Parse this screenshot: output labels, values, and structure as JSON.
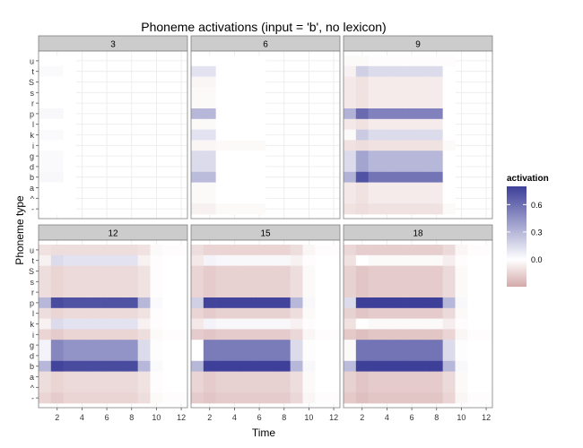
{
  "chart_data": {
    "type": "heatmap",
    "title": "Phoneme activations (input = 'b', no lexicon)",
    "xlabel": "Time",
    "ylabel": "Phoneme type",
    "x_ticks": [
      2,
      4,
      6,
      8,
      10,
      12
    ],
    "xlim": [
      1,
      12
    ],
    "phonemes": [
      "u",
      "t",
      "S",
      "s",
      "r",
      "p",
      "l",
      "k",
      "i",
      "g",
      "d",
      "b",
      "a",
      "^",
      "-"
    ],
    "legend": {
      "title": "activation",
      "ticks": [
        0.0,
        0.3,
        0.6
      ],
      "range": [
        -0.3,
        0.8
      ],
      "low_color": "#d4a9a9",
      "mid_color": "#ffffff",
      "high_color": "#3d3f99",
      "placement": "right"
    },
    "grid": true,
    "panels": [
      {
        "label": "3",
        "time_steps": 3,
        "values": {
          "u": [
            0.0,
            0.0,
            0.0
          ],
          "t": [
            0.02,
            0.02,
            0.0
          ],
          "S": [
            0.0,
            0.0,
            0.0
          ],
          "s": [
            0.0,
            0.0,
            0.0
          ],
          "r": [
            0.0,
            0.0,
            0.0
          ],
          "p": [
            0.03,
            0.03,
            0.0
          ],
          "l": [
            0.0,
            0.0,
            0.0
          ],
          "k": [
            0.02,
            0.02,
            0.0
          ],
          "i": [
            0.0,
            0.0,
            0.0
          ],
          "g": [
            0.02,
            0.02,
            0.0
          ],
          "d": [
            0.02,
            0.02,
            0.0
          ],
          "b": [
            0.03,
            0.03,
            0.0
          ],
          "a": [
            0.0,
            0.0,
            0.0
          ],
          "^": [
            0.0,
            0.0,
            0.0
          ],
          "-": [
            0.0,
            0.0,
            0.0
          ]
        }
      },
      {
        "label": "6",
        "time_steps": 6,
        "values": {
          "u": [
            0.0,
            0.0,
            0.0,
            0.0,
            0.0,
            0.0
          ],
          "t": [
            0.12,
            0.12,
            0.0,
            0.0,
            0.0,
            0.0
          ],
          "S": [
            -0.03,
            -0.03,
            0.0,
            0.0,
            0.0,
            0.0
          ],
          "s": [
            -0.02,
            -0.02,
            0.0,
            0.0,
            0.0,
            0.0
          ],
          "r": [
            -0.02,
            -0.02,
            0.0,
            0.0,
            0.0,
            0.0
          ],
          "p": [
            0.3,
            0.3,
            0.0,
            0.0,
            0.0,
            0.0
          ],
          "l": [
            -0.02,
            -0.02,
            0.0,
            0.0,
            0.0,
            0.0
          ],
          "k": [
            0.12,
            0.12,
            0.0,
            0.0,
            0.0,
            0.0
          ],
          "i": [
            -0.03,
            -0.03,
            -0.02,
            -0.02,
            -0.02,
            -0.02
          ],
          "g": [
            0.15,
            0.15,
            0.0,
            0.0,
            0.0,
            0.0
          ],
          "d": [
            0.15,
            0.15,
            0.0,
            0.0,
            0.0,
            0.0
          ],
          "b": [
            0.28,
            0.28,
            0.0,
            0.0,
            0.0,
            0.0
          ],
          "a": [
            -0.02,
            -0.02,
            0.0,
            0.0,
            0.0,
            0.0
          ],
          "^": [
            -0.02,
            -0.02,
            0.0,
            0.0,
            0.0,
            0.0
          ],
          "-": [
            -0.05,
            -0.05,
            -0.02,
            -0.02,
            -0.02,
            -0.02
          ]
        }
      },
      {
        "label": "9",
        "time_steps": 9,
        "values": {
          "u": [
            -0.02,
            -0.02,
            -0.01,
            -0.01,
            -0.01,
            -0.01,
            -0.01,
            -0.01,
            -0.01
          ],
          "t": [
            -0.05,
            0.2,
            0.15,
            0.15,
            0.15,
            0.15,
            0.15,
            0.15,
            0.0
          ],
          "S": [
            -0.08,
            -0.1,
            -0.07,
            -0.07,
            -0.07,
            -0.07,
            -0.07,
            -0.07,
            0.0
          ],
          "s": [
            -0.08,
            -0.1,
            -0.07,
            -0.07,
            -0.07,
            -0.07,
            -0.07,
            -0.07,
            0.0
          ],
          "r": [
            -0.08,
            -0.1,
            -0.07,
            -0.07,
            -0.07,
            -0.07,
            -0.07,
            -0.07,
            0.0
          ],
          "p": [
            0.32,
            0.62,
            0.52,
            0.52,
            0.52,
            0.52,
            0.52,
            0.52,
            0.0
          ],
          "l": [
            -0.08,
            -0.1,
            -0.07,
            -0.07,
            -0.07,
            -0.07,
            -0.07,
            -0.07,
            0.0
          ],
          "k": [
            -0.02,
            0.22,
            0.15,
            0.15,
            0.15,
            0.15,
            0.15,
            0.15,
            0.0
          ],
          "i": [
            -0.1,
            -0.12,
            -0.1,
            -0.1,
            -0.1,
            -0.1,
            -0.1,
            -0.1,
            -0.02
          ],
          "g": [
            0.15,
            0.38,
            0.3,
            0.3,
            0.3,
            0.3,
            0.3,
            0.3,
            0.0
          ],
          "d": [
            0.15,
            0.38,
            0.3,
            0.3,
            0.3,
            0.3,
            0.3,
            0.3,
            0.0
          ],
          "b": [
            0.32,
            0.72,
            0.58,
            0.58,
            0.58,
            0.58,
            0.58,
            0.58,
            0.0
          ],
          "a": [
            -0.08,
            -0.1,
            -0.07,
            -0.07,
            -0.07,
            -0.07,
            -0.07,
            -0.07,
            0.0
          ],
          "^": [
            -0.08,
            -0.1,
            -0.07,
            -0.07,
            -0.07,
            -0.07,
            -0.07,
            -0.07,
            0.0
          ],
          "-": [
            -0.1,
            -0.12,
            -0.1,
            -0.1,
            -0.1,
            -0.1,
            -0.1,
            -0.1,
            -0.02
          ]
        }
      },
      {
        "label": "12",
        "time_steps": 12,
        "values": {
          "u": [
            -0.1,
            -0.12,
            -0.12,
            -0.12,
            -0.12,
            -0.12,
            -0.12,
            -0.12,
            -0.1,
            -0.02,
            -0.01,
            -0.01
          ],
          "t": [
            -0.05,
            0.15,
            0.12,
            0.12,
            0.12,
            0.12,
            0.12,
            0.12,
            -0.05,
            -0.01,
            0.0,
            0.0
          ],
          "S": [
            -0.12,
            -0.15,
            -0.13,
            -0.13,
            -0.13,
            -0.13,
            -0.13,
            -0.13,
            -0.1,
            -0.01,
            0.0,
            0.0
          ],
          "s": [
            -0.12,
            -0.15,
            -0.13,
            -0.13,
            -0.13,
            -0.13,
            -0.13,
            -0.13,
            -0.1,
            -0.01,
            0.0,
            0.0
          ],
          "r": [
            -0.12,
            -0.15,
            -0.13,
            -0.13,
            -0.13,
            -0.13,
            -0.13,
            -0.13,
            -0.1,
            -0.01,
            0.0,
            0.0
          ],
          "p": [
            0.3,
            0.75,
            0.72,
            0.72,
            0.72,
            0.72,
            0.72,
            0.72,
            0.3,
            0.02,
            0.0,
            0.0
          ],
          "l": [
            -0.12,
            -0.15,
            -0.13,
            -0.13,
            -0.13,
            -0.13,
            -0.13,
            -0.13,
            -0.1,
            -0.01,
            0.0,
            0.0
          ],
          "k": [
            -0.05,
            0.15,
            0.12,
            0.12,
            0.12,
            0.12,
            0.12,
            0.12,
            -0.05,
            -0.01,
            0.0,
            0.0
          ],
          "i": [
            -0.15,
            -0.18,
            -0.15,
            -0.15,
            -0.15,
            -0.15,
            -0.15,
            -0.15,
            -0.12,
            -0.02,
            -0.01,
            -0.01
          ],
          "g": [
            0.05,
            0.5,
            0.45,
            0.45,
            0.45,
            0.45,
            0.45,
            0.45,
            0.15,
            0.01,
            0.0,
            0.0
          ],
          "d": [
            0.05,
            0.5,
            0.45,
            0.45,
            0.45,
            0.45,
            0.45,
            0.45,
            0.15,
            0.01,
            0.0,
            0.0
          ],
          "b": [
            0.3,
            0.78,
            0.75,
            0.75,
            0.75,
            0.75,
            0.75,
            0.75,
            0.3,
            0.02,
            0.0,
            0.0
          ],
          "a": [
            -0.12,
            -0.15,
            -0.13,
            -0.13,
            -0.13,
            -0.13,
            -0.13,
            -0.13,
            -0.1,
            -0.01,
            0.0,
            0.0
          ],
          "^": [
            -0.12,
            -0.15,
            -0.13,
            -0.13,
            -0.13,
            -0.13,
            -0.13,
            -0.13,
            -0.1,
            -0.01,
            0.0,
            0.0
          ],
          "-": [
            -0.15,
            -0.18,
            -0.15,
            -0.15,
            -0.15,
            -0.15,
            -0.15,
            -0.15,
            -0.12,
            -0.02,
            -0.01,
            -0.01
          ]
        }
      },
      {
        "label": "15",
        "time_steps": 12,
        "values": {
          "u": [
            -0.12,
            -0.15,
            -0.15,
            -0.15,
            -0.15,
            -0.15,
            -0.15,
            -0.15,
            -0.12,
            -0.03,
            -0.01,
            -0.01
          ],
          "t": [
            -0.08,
            0.05,
            0.03,
            0.03,
            0.03,
            0.03,
            0.03,
            0.03,
            -0.05,
            -0.01,
            0.0,
            0.0
          ],
          "S": [
            -0.15,
            -0.18,
            -0.16,
            -0.16,
            -0.16,
            -0.16,
            -0.16,
            -0.16,
            -0.12,
            -0.02,
            0.0,
            0.0
          ],
          "s": [
            -0.15,
            -0.18,
            -0.16,
            -0.16,
            -0.16,
            -0.16,
            -0.16,
            -0.16,
            -0.12,
            -0.02,
            0.0,
            0.0
          ],
          "r": [
            -0.15,
            -0.18,
            -0.16,
            -0.16,
            -0.16,
            -0.16,
            -0.16,
            -0.16,
            -0.12,
            -0.02,
            0.0,
            0.0
          ],
          "p": [
            0.2,
            0.78,
            0.78,
            0.78,
            0.78,
            0.78,
            0.78,
            0.78,
            0.3,
            0.03,
            0.0,
            0.0
          ],
          "l": [
            -0.15,
            -0.18,
            -0.16,
            -0.16,
            -0.16,
            -0.16,
            -0.16,
            -0.16,
            -0.12,
            -0.02,
            0.0,
            0.0
          ],
          "k": [
            -0.08,
            0.05,
            0.03,
            0.03,
            0.03,
            0.03,
            0.03,
            0.03,
            -0.05,
            -0.01,
            0.0,
            0.0
          ],
          "i": [
            -0.18,
            -0.2,
            -0.18,
            -0.18,
            -0.18,
            -0.18,
            -0.18,
            -0.18,
            -0.14,
            -0.03,
            -0.01,
            -0.01
          ],
          "g": [
            0.0,
            0.55,
            0.55,
            0.55,
            0.55,
            0.55,
            0.55,
            0.55,
            0.15,
            0.01,
            0.0,
            0.0
          ],
          "d": [
            0.0,
            0.55,
            0.55,
            0.55,
            0.55,
            0.55,
            0.55,
            0.55,
            0.15,
            0.01,
            0.0,
            0.0
          ],
          "b": [
            0.3,
            0.82,
            0.82,
            0.82,
            0.82,
            0.82,
            0.82,
            0.82,
            0.3,
            0.03,
            0.0,
            0.0
          ],
          "a": [
            -0.15,
            -0.18,
            -0.16,
            -0.16,
            -0.16,
            -0.16,
            -0.16,
            -0.16,
            -0.12,
            -0.02,
            0.0,
            0.0
          ],
          "^": [
            -0.15,
            -0.18,
            -0.16,
            -0.16,
            -0.16,
            -0.16,
            -0.16,
            -0.16,
            -0.12,
            -0.02,
            0.0,
            0.0
          ],
          "-": [
            -0.18,
            -0.2,
            -0.18,
            -0.18,
            -0.18,
            -0.18,
            -0.18,
            -0.18,
            -0.14,
            -0.03,
            -0.01,
            -0.01
          ]
        }
      },
      {
        "label": "18",
        "time_steps": 12,
        "values": {
          "u": [
            -0.14,
            -0.17,
            -0.17,
            -0.17,
            -0.17,
            -0.17,
            -0.17,
            -0.17,
            -0.13,
            -0.03,
            -0.01,
            -0.01
          ],
          "t": [
            -0.1,
            0.0,
            -0.02,
            -0.02,
            -0.02,
            -0.02,
            -0.02,
            -0.02,
            -0.06,
            -0.01,
            0.0,
            0.0
          ],
          "S": [
            -0.16,
            -0.2,
            -0.18,
            -0.18,
            -0.18,
            -0.18,
            -0.18,
            -0.18,
            -0.13,
            -0.02,
            0.0,
            0.0
          ],
          "s": [
            -0.16,
            -0.2,
            -0.18,
            -0.18,
            -0.18,
            -0.18,
            -0.18,
            -0.18,
            -0.13,
            -0.02,
            0.0,
            0.0
          ],
          "r": [
            -0.16,
            -0.2,
            -0.18,
            -0.18,
            -0.18,
            -0.18,
            -0.18,
            -0.18,
            -0.13,
            -0.02,
            0.0,
            0.0
          ],
          "p": [
            0.15,
            0.8,
            0.8,
            0.8,
            0.8,
            0.8,
            0.8,
            0.8,
            0.3,
            0.03,
            0.0,
            0.0
          ],
          "l": [
            -0.16,
            -0.2,
            -0.18,
            -0.18,
            -0.18,
            -0.18,
            -0.18,
            -0.18,
            -0.13,
            -0.02,
            0.0,
            0.0
          ],
          "k": [
            -0.1,
            0.0,
            -0.02,
            -0.02,
            -0.02,
            -0.02,
            -0.02,
            -0.02,
            -0.06,
            -0.01,
            0.0,
            0.0
          ],
          "i": [
            -0.19,
            -0.22,
            -0.2,
            -0.2,
            -0.2,
            -0.2,
            -0.2,
            -0.2,
            -0.15,
            -0.03,
            -0.01,
            -0.01
          ],
          "g": [
            -0.02,
            0.58,
            0.58,
            0.58,
            0.58,
            0.58,
            0.58,
            0.58,
            0.15,
            0.01,
            0.0,
            0.0
          ],
          "d": [
            -0.02,
            0.58,
            0.58,
            0.58,
            0.58,
            0.58,
            0.58,
            0.58,
            0.15,
            0.01,
            0.0,
            0.0
          ],
          "b": [
            0.28,
            0.85,
            0.85,
            0.85,
            0.85,
            0.85,
            0.85,
            0.85,
            0.3,
            0.03,
            0.0,
            0.0
          ],
          "a": [
            -0.16,
            -0.2,
            -0.18,
            -0.18,
            -0.18,
            -0.18,
            -0.18,
            -0.18,
            -0.13,
            -0.02,
            0.0,
            0.0
          ],
          "^": [
            -0.16,
            -0.2,
            -0.18,
            -0.18,
            -0.18,
            -0.18,
            -0.18,
            -0.18,
            -0.13,
            -0.02,
            0.0,
            0.0
          ],
          "-": [
            -0.19,
            -0.22,
            -0.2,
            -0.2,
            -0.2,
            -0.2,
            -0.2,
            -0.2,
            -0.15,
            -0.03,
            -0.01,
            -0.01
          ]
        }
      }
    ]
  }
}
